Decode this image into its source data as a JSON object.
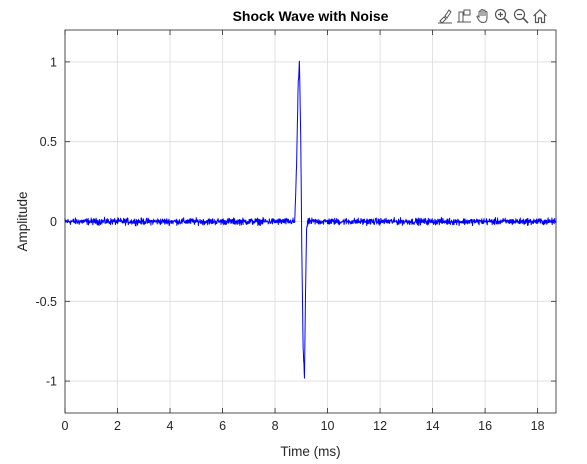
{
  "toolbar": {
    "icons": [
      "brush-icon",
      "data-tips-icon",
      "pan-hand-icon",
      "zoom-in-icon",
      "zoom-out-icon",
      "home-icon"
    ]
  },
  "colors": {
    "line": "#0000ff",
    "grid": "#dcdcdc",
    "axis": "#262626"
  },
  "chart_data": {
    "type": "line",
    "title": "Shock Wave with Noise",
    "xlabel": "Time (ms)",
    "ylabel": "Amplitude",
    "xlim": [
      0,
      18.7
    ],
    "ylim": [
      -1.2,
      1.2
    ],
    "xticks": [
      0,
      2,
      4,
      6,
      8,
      10,
      12,
      14,
      16,
      18
    ],
    "yticks": [
      -1,
      -0.5,
      0,
      0.5,
      1
    ],
    "xtick_labels": [
      "0",
      "2",
      "4",
      "6",
      "8",
      "10",
      "12",
      "14",
      "16",
      "18"
    ],
    "ytick_labels": [
      "-1",
      "-0.5",
      "0",
      "0.5",
      "1"
    ],
    "grid": true,
    "series": [
      {
        "color": "#0000ff",
        "noise_amplitude": 0.02,
        "x": [
          0,
          8.75,
          8.82,
          8.88,
          8.93,
          8.98,
          9.02,
          9.07,
          9.12,
          9.16,
          9.2,
          9.26,
          18.7
        ],
        "y": [
          0,
          0.0,
          0.35,
          0.85,
          1.0,
          0.5,
          -0.2,
          -0.8,
          -0.98,
          -0.45,
          -0.05,
          0.0,
          0
        ]
      }
    ]
  }
}
